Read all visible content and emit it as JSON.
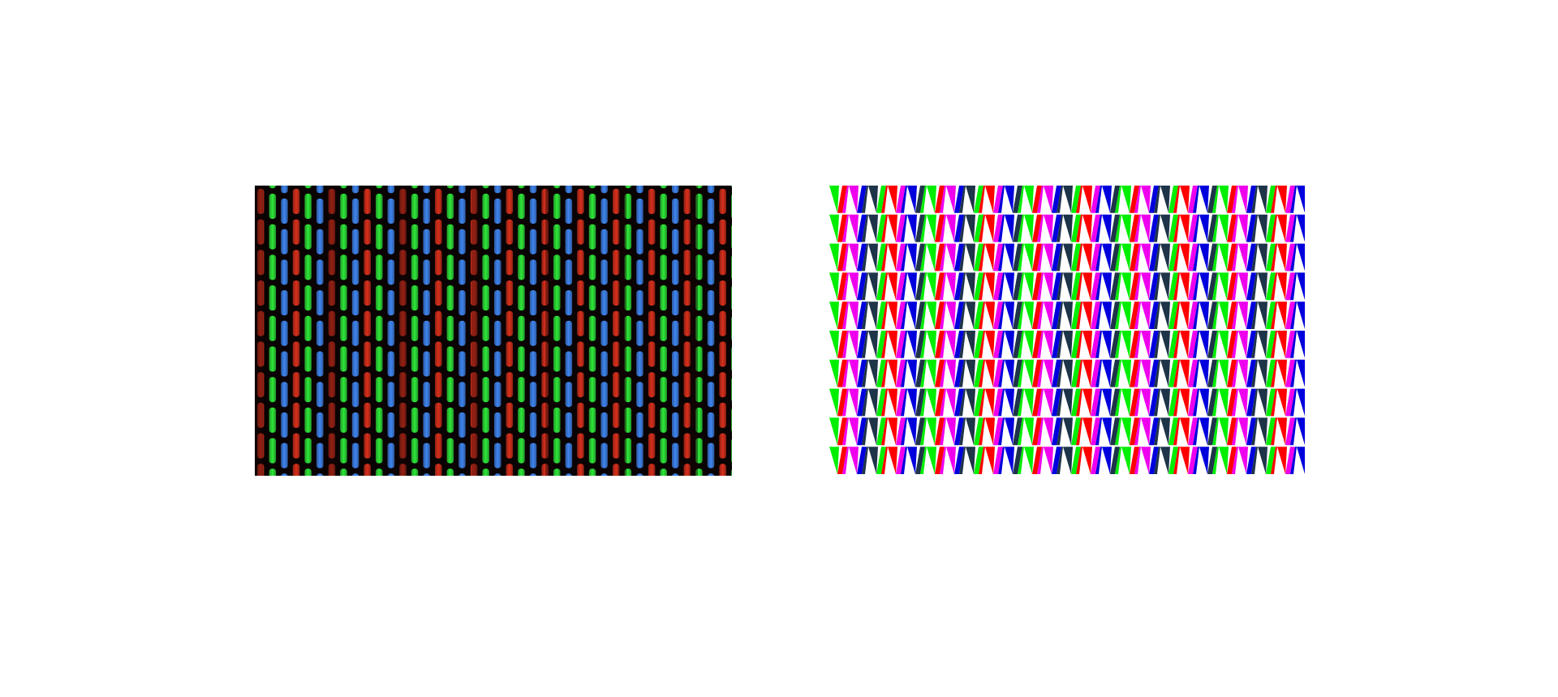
{
  "photo": {
    "description_free": true,
    "subpixel_order": [
      "red",
      "green",
      "blue"
    ],
    "colors": {
      "background": "#0a0303",
      "dark_band": "#1a0505",
      "red": "#d8301c",
      "green": "#2ee83a",
      "blue": "#3f86f0"
    }
  },
  "pattern": {
    "colors": {
      "green": "#00ee00",
      "red": "#ff0000",
      "magenta": "#ee00ee",
      "blue": "#0000dd",
      "dark": "#1e3448"
    }
  }
}
